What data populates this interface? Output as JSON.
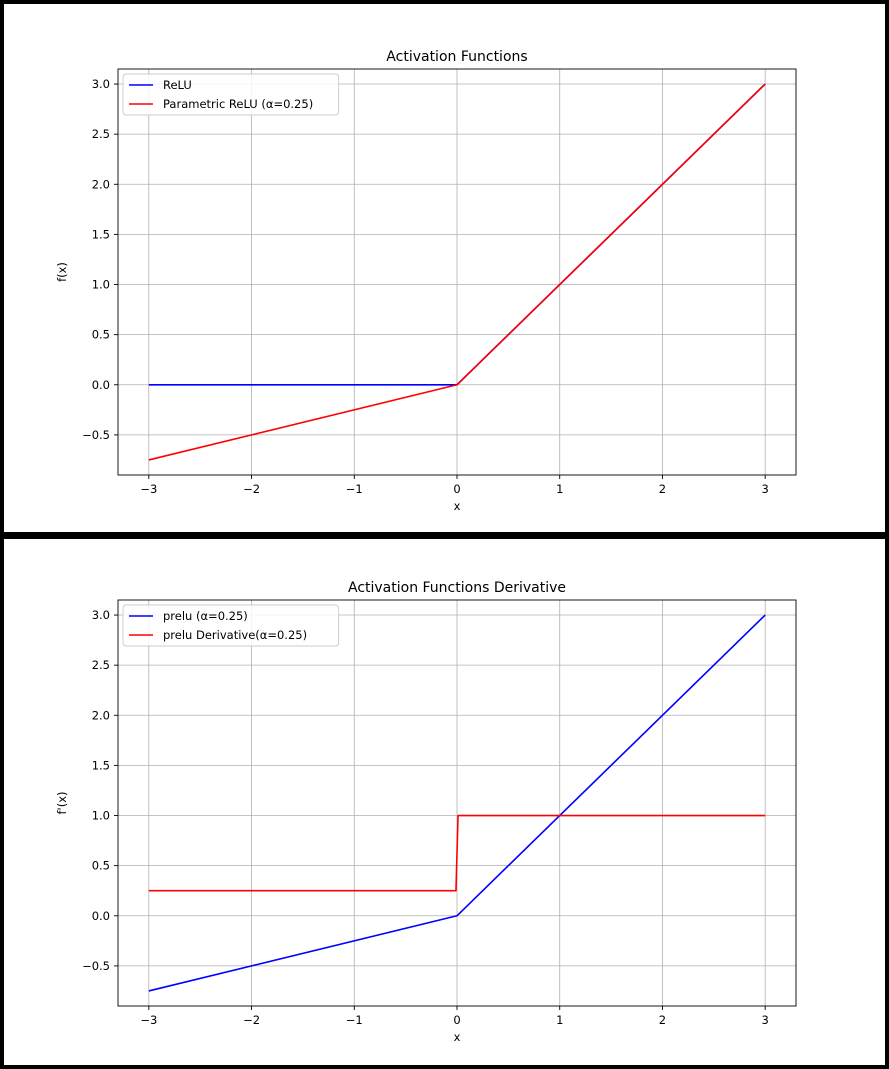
{
  "chart_data": [
    {
      "type": "line",
      "title": "Activation Functions",
      "xlabel": "x",
      "ylabel": "f(x)",
      "xlim": [
        -3.3,
        3.3
      ],
      "ylim": [
        -0.9,
        3.15
      ],
      "xticks": [
        -3,
        -2,
        -1,
        0,
        1,
        2,
        3
      ],
      "xtick_labels": [
        "−3",
        "−2",
        "−1",
        "0",
        "1",
        "2",
        "3"
      ],
      "yticks": [
        -0.5,
        0.0,
        0.5,
        1.0,
        1.5,
        2.0,
        2.5,
        3.0
      ],
      "ytick_labels": [
        "−0.5",
        "0.0",
        "0.5",
        "1.0",
        "1.5",
        "2.0",
        "2.5",
        "3.0"
      ],
      "grid": true,
      "legend_position": "top-left",
      "series": [
        {
          "name": "ReLU",
          "color": "#0000ff",
          "x": [
            -3,
            0,
            3
          ],
          "y": [
            0,
            0,
            3
          ]
        },
        {
          "name": "Parametric ReLU (α=0.25)",
          "color": "#ff0000",
          "x": [
            -3,
            0,
            3
          ],
          "y": [
            -0.75,
            0,
            3
          ]
        }
      ]
    },
    {
      "type": "line",
      "title": "Activation Functions Derivative",
      "xlabel": "x",
      "ylabel": "f'(x)",
      "xlim": [
        -3.3,
        3.3
      ],
      "ylim": [
        -0.9,
        3.15
      ],
      "xticks": [
        -3,
        -2,
        -1,
        0,
        1,
        2,
        3
      ],
      "xtick_labels": [
        "−3",
        "−2",
        "−1",
        "0",
        "1",
        "2",
        "3"
      ],
      "yticks": [
        -0.5,
        0.0,
        0.5,
        1.0,
        1.5,
        2.0,
        2.5,
        3.0
      ],
      "ytick_labels": [
        "−0.5",
        "0.0",
        "0.5",
        "1.0",
        "1.5",
        "2.0",
        "2.5",
        "3.0"
      ],
      "grid": true,
      "legend_position": "top-left",
      "series": [
        {
          "name": "prelu (α=0.25)",
          "color": "#0000ff",
          "x": [
            -3,
            0,
            3
          ],
          "y": [
            -0.75,
            0,
            3
          ]
        },
        {
          "name": "prelu Derivative(α=0.25)",
          "color": "#ff0000",
          "x": [
            -3,
            -0.01,
            0.01,
            3
          ],
          "y": [
            0.25,
            0.25,
            1,
            1
          ]
        }
      ]
    }
  ]
}
